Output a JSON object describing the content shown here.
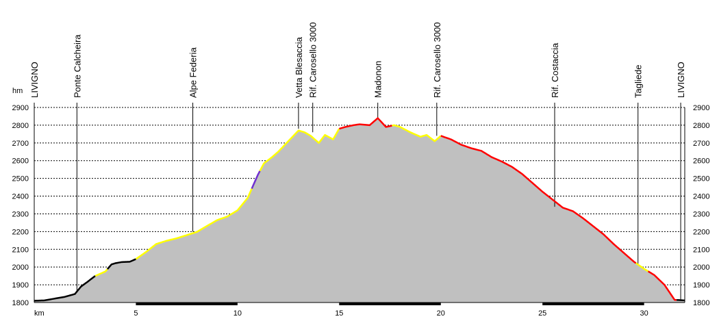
{
  "chart_data": {
    "type": "area",
    "title": "",
    "xlabel": "km",
    "ylabel": "hm",
    "xlim": [
      0,
      32
    ],
    "ylim": [
      1800,
      2900
    ],
    "x_ticks": [
      5,
      10,
      15,
      20,
      25,
      30
    ],
    "y_ticks": [
      1800,
      1900,
      2000,
      2100,
      2200,
      2300,
      2400,
      2500,
      2600,
      2700,
      2800,
      2900
    ],
    "grid": true,
    "fill_color": "#c0c0c0",
    "waypoints": [
      {
        "name": "LIVIGNO",
        "x": 0.0,
        "elevation": 1810
      },
      {
        "name": "Ponte Calcheira",
        "x": 2.1,
        "elevation": 1860
      },
      {
        "name": "Alpe Federia",
        "x": 7.8,
        "elevation": 2200
      },
      {
        "name": "Vetta Blesaccia",
        "x": 13.0,
        "elevation": 2780
      },
      {
        "name": "Rif. Carosello 3000",
        "x": 13.7,
        "elevation": 2760
      },
      {
        "name": "Madonon",
        "x": 16.9,
        "elevation": 2840
      },
      {
        "name": "Rif. Carosello 3000",
        "x": 19.8,
        "elevation": 2740
      },
      {
        "name": "Rif. Costaccia",
        "x": 25.6,
        "elevation": 2340
      },
      {
        "name": "Tagliede",
        "x": 29.7,
        "elevation": 2010
      },
      {
        "name": "LIVIGNO",
        "x": 31.8,
        "elevation": 1810
      }
    ],
    "profile": {
      "x": [
        0,
        0.5,
        1.0,
        1.5,
        2.0,
        2.3,
        2.6,
        3.0,
        3.5,
        3.8,
        4.0,
        4.3,
        4.7,
        5.0,
        5.5,
        6.0,
        6.5,
        7.0,
        7.5,
        8.0,
        8.5,
        9.0,
        9.5,
        10.0,
        10.5,
        11.0,
        11.3,
        11.7,
        12.0,
        12.5,
        13.0,
        13.3,
        13.6,
        14.0,
        14.3,
        14.7,
        15.0,
        15.3,
        15.7,
        16.0,
        16.5,
        16.9,
        17.3,
        17.7,
        18.0,
        18.5,
        19.0,
        19.3,
        19.7,
        20.0,
        20.5,
        21.0,
        21.5,
        22.0,
        22.5,
        23.0,
        23.5,
        24.0,
        24.5,
        25.0,
        25.5,
        26.0,
        26.5,
        27.0,
        27.5,
        28.0,
        28.5,
        29.0,
        29.5,
        30.0,
        30.5,
        31.0,
        31.5,
        32.0
      ],
      "y": [
        1810,
        1812,
        1822,
        1832,
        1848,
        1890,
        1915,
        1950,
        1975,
        2015,
        2022,
        2028,
        2030,
        2045,
        2085,
        2130,
        2148,
        2162,
        2180,
        2198,
        2232,
        2265,
        2285,
        2320,
        2390,
        2520,
        2585,
        2620,
        2650,
        2710,
        2770,
        2760,
        2740,
        2700,
        2745,
        2720,
        2780,
        2790,
        2800,
        2805,
        2800,
        2840,
        2790,
        2800,
        2790,
        2760,
        2735,
        2745,
        2710,
        2740,
        2720,
        2690,
        2670,
        2655,
        2620,
        2595,
        2565,
        2525,
        2475,
        2425,
        2380,
        2335,
        2315,
        2275,
        2230,
        2185,
        2130,
        2080,
        2030,
        1990,
        1955,
        1900,
        1815,
        1812
      ]
    },
    "segments": [
      {
        "color": "#000000",
        "from": 0,
        "to": 3.0
      },
      {
        "color": "#ffff00",
        "from": 3.0,
        "to": 3.6
      },
      {
        "color": "#000000",
        "from": 3.6,
        "to": 5.0
      },
      {
        "color": "#ffff00",
        "from": 5.0,
        "to": 10.7
      },
      {
        "color": "#7030d0",
        "from": 10.7,
        "to": 11.1
      },
      {
        "color": "#ffff00",
        "from": 11.1,
        "to": 15.0
      },
      {
        "color": "#ff0000",
        "from": 15.0,
        "to": 17.6
      },
      {
        "color": "#ffff00",
        "from": 17.6,
        "to": 20.0
      },
      {
        "color": "#ff0000",
        "from": 20.0,
        "to": 29.6
      },
      {
        "color": "#ffff00",
        "from": 29.6,
        "to": 30.2
      },
      {
        "color": "#ff0000",
        "from": 30.2,
        "to": 31.6
      },
      {
        "color": "#000000",
        "from": 31.6,
        "to": 32.0
      }
    ],
    "x_axis_bars": [
      {
        "from": 5,
        "to": 10
      },
      {
        "from": 15,
        "to": 20
      },
      {
        "from": 25,
        "to": 30
      }
    ]
  }
}
